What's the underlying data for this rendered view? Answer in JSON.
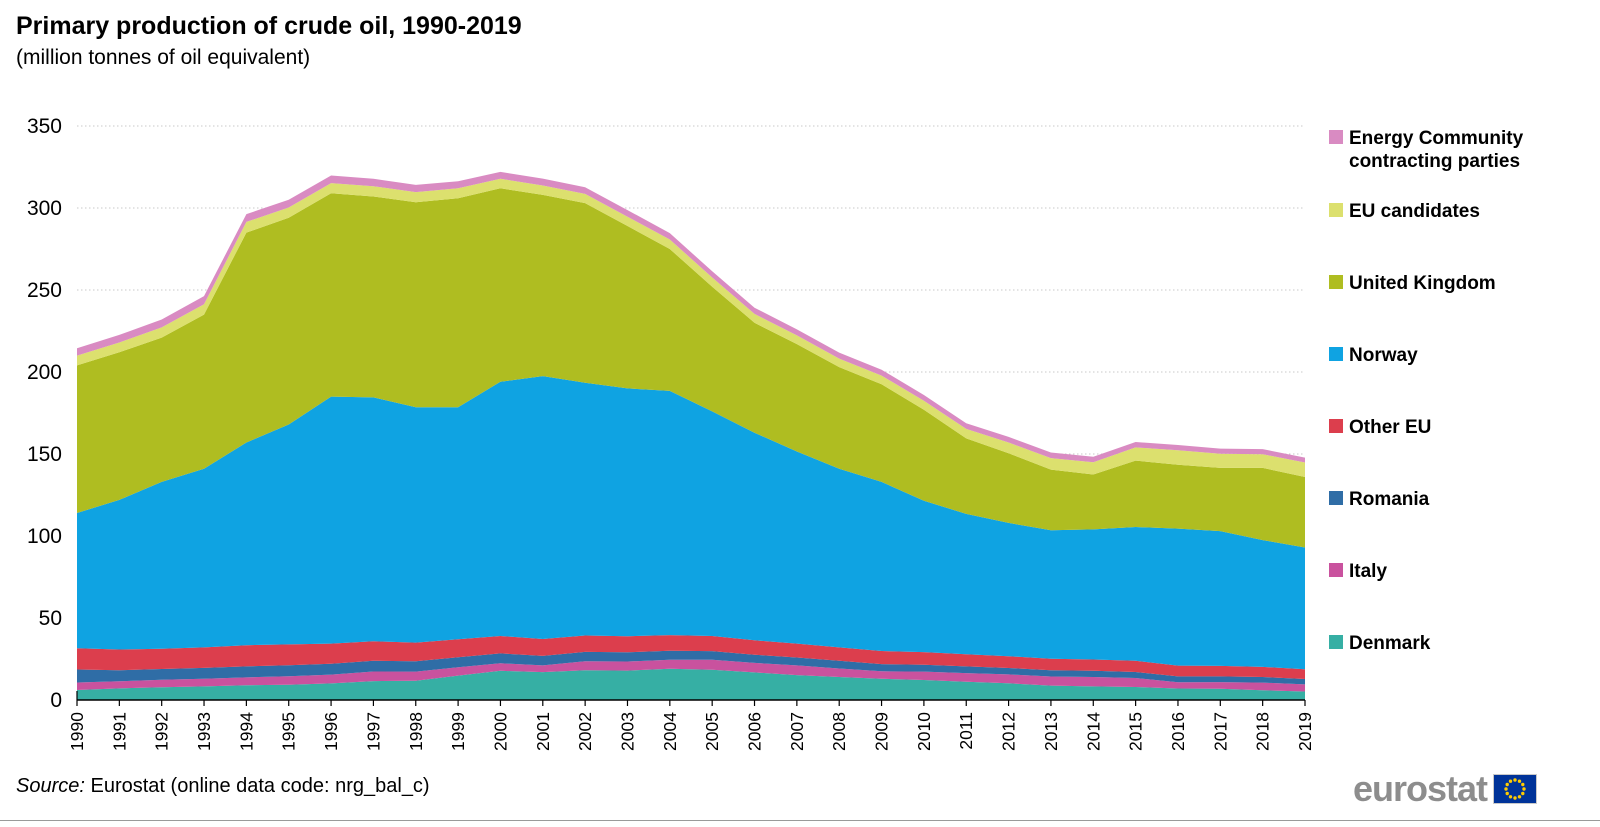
{
  "header": {
    "title": "Primary production of crude oil, 1990-2019",
    "subtitle": "(million tonnes of oil equivalent)"
  },
  "chart_data": {
    "type": "area",
    "stacked": true,
    "title": "Primary production of crude oil, 1990-2019",
    "units": "million tonnes of oil equivalent",
    "xlabel": "",
    "ylabel": "",
    "ylim": [
      0,
      350
    ],
    "yticks": [
      0,
      50,
      100,
      150,
      200,
      250,
      300,
      350
    ],
    "grid": "horizontal-dotted",
    "legend_position": "right",
    "x": [
      1990,
      1991,
      1992,
      1993,
      1994,
      1995,
      1996,
      1997,
      1998,
      1999,
      2000,
      2001,
      2002,
      2003,
      2004,
      2005,
      2006,
      2007,
      2008,
      2009,
      2010,
      2011,
      2012,
      2013,
      2014,
      2015,
      2016,
      2017,
      2018,
      2019
    ],
    "series": [
      {
        "name": "Denmark",
        "color": "#36AFA4",
        "values": [
          6.1,
          7.1,
          7.8,
          8.3,
          9.0,
          9.3,
          10.1,
          11.5,
          11.7,
          14.9,
          17.8,
          17.0,
          18.1,
          17.9,
          19.1,
          18.4,
          16.8,
          15.2,
          14.0,
          12.9,
          12.2,
          11.1,
          10.2,
          8.8,
          8.3,
          7.9,
          7.0,
          6.8,
          5.9,
          5.2
        ]
      },
      {
        "name": "Italy",
        "color": "#C9529E",
        "values": [
          4.6,
          4.3,
          4.5,
          4.6,
          4.8,
          5.2,
          5.4,
          5.9,
          5.6,
          5.1,
          4.6,
          4.1,
          5.5,
          5.6,
          5.4,
          6.1,
          5.8,
          5.9,
          5.2,
          4.6,
          5.1,
          5.3,
          5.4,
          5.5,
          5.7,
          5.5,
          3.8,
          4.1,
          4.7,
          4.3
        ]
      },
      {
        "name": "Romania",
        "color": "#2F6DA6",
        "values": [
          7.9,
          6.8,
          6.6,
          6.7,
          6.7,
          6.7,
          6.6,
          6.5,
          6.3,
          6.1,
          6.0,
          5.8,
          5.7,
          5.6,
          5.5,
          5.3,
          5.0,
          4.8,
          4.7,
          4.4,
          4.2,
          4.1,
          3.9,
          3.9,
          3.8,
          3.7,
          3.6,
          3.5,
          3.4,
          3.3
        ]
      },
      {
        "name": "Other EU",
        "color": "#DC3E4D",
        "values": [
          13.0,
          12.6,
          12.3,
          12.5,
          12.9,
          12.7,
          12.3,
          11.9,
          11.4,
          11.0,
          10.6,
          10.3,
          10.0,
          9.8,
          9.6,
          9.2,
          8.8,
          8.5,
          8.2,
          8.0,
          7.7,
          7.4,
          7.2,
          7.0,
          6.9,
          6.8,
          6.6,
          6.4,
          6.2,
          6.0
        ]
      },
      {
        "name": "Norway",
        "color": "#0FA3E2",
        "values": [
          82.4,
          91.2,
          101.8,
          108.9,
          123.6,
          134.1,
          150.6,
          148.7,
          143.5,
          141.4,
          155.0,
          160.3,
          154.2,
          151.1,
          148.9,
          137.0,
          126.6,
          117.1,
          108.9,
          103.1,
          92.3,
          85.6,
          81.3,
          78.3,
          79.3,
          81.6,
          83.5,
          82.2,
          77.3,
          74.2
        ]
      },
      {
        "name": "United Kingdom",
        "color": "#AFBD21",
        "values": [
          90.0,
          90.0,
          88.0,
          94.0,
          128.0,
          126.0,
          124.0,
          122.5,
          125.0,
          127.5,
          118.0,
          110.5,
          109.5,
          99.0,
          86.5,
          76.0,
          67.0,
          65.5,
          62.0,
          59.5,
          55.5,
          46.0,
          42.5,
          37.0,
          33.5,
          40.5,
          39.0,
          38.5,
          44.0,
          43.0
        ]
      },
      {
        "name": "EU candidates",
        "color": "#DCE06E",
        "values": [
          6.0,
          6.0,
          6.2,
          6.3,
          6.5,
          6.3,
          6.2,
          6.3,
          6.2,
          6.0,
          5.8,
          5.7,
          5.6,
          5.7,
          5.8,
          5.6,
          5.4,
          5.3,
          5.2,
          5.3,
          5.5,
          5.8,
          6.5,
          7.0,
          7.5,
          8.0,
          8.8,
          8.6,
          8.4,
          8.8
        ]
      },
      {
        "name": "Energy Community contracting parties",
        "color": "#D98BC2",
        "values": [
          4.5,
          4.6,
          4.8,
          5.0,
          4.8,
          4.7,
          4.6,
          4.5,
          4.4,
          4.3,
          4.2,
          4.2,
          4.1,
          4.0,
          3.9,
          3.8,
          3.8,
          3.7,
          3.6,
          3.6,
          3.5,
          3.5,
          3.4,
          3.4,
          3.3,
          3.3,
          3.2,
          3.2,
          3.1,
          3.0
        ]
      }
    ]
  },
  "legend": {
    "items": [
      {
        "label": "Energy Community contracting parties",
        "color": "#D98BC2"
      },
      {
        "label": "EU candidates",
        "color": "#DCE06E"
      },
      {
        "label": "United Kingdom",
        "color": "#AFBD21"
      },
      {
        "label": "Norway",
        "color": "#0FA3E2"
      },
      {
        "label": "Other EU",
        "color": "#DC3E4D"
      },
      {
        "label": "Romania",
        "color": "#2F6DA6"
      },
      {
        "label": "Italy",
        "color": "#C9529E"
      },
      {
        "label": "Denmark",
        "color": "#36AFA4"
      }
    ]
  },
  "footer": {
    "source_label": "Source:",
    "source_text": " Eurostat (online data code: nrg_bal_c)",
    "logo_text": "eurostat"
  }
}
